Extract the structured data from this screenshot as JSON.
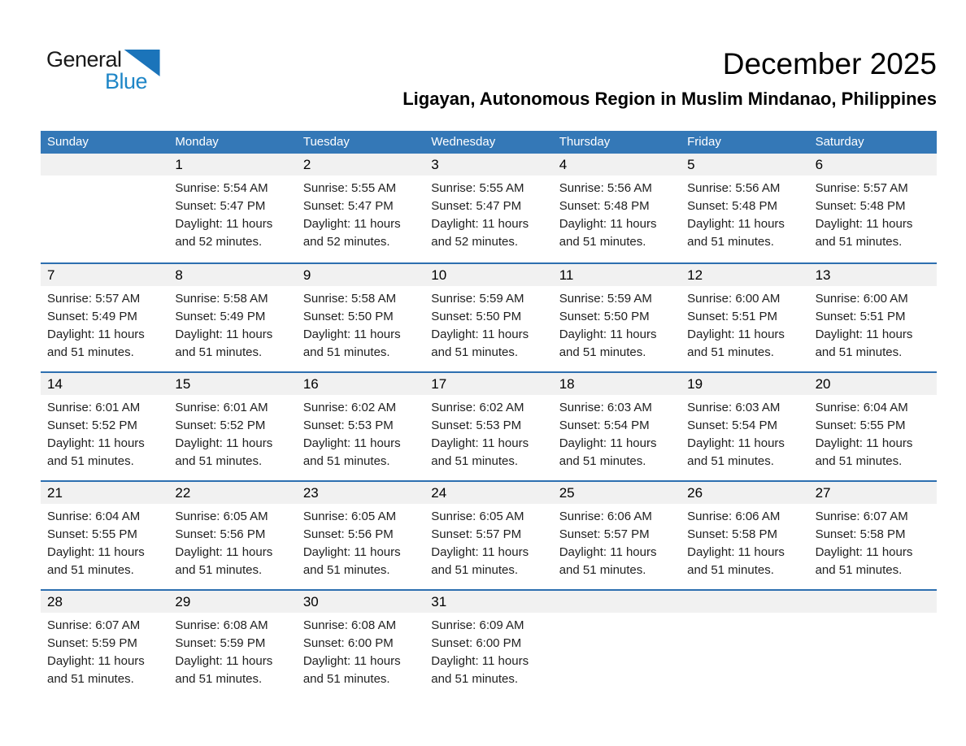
{
  "logo": {
    "word1": "General",
    "word2": "Blue",
    "triangle_icon": "logo-triangle"
  },
  "header": {
    "title": "December 2025",
    "subtitle": "Ligayan, Autonomous Region in Muslim Mindanao, Philippines"
  },
  "colors": {
    "header_bar": "#3478B7",
    "week_separator": "#2D6FB0",
    "day_number_band": "#F1F1F1",
    "logo_black": "#1A1A1A",
    "logo_blue": "#1E86C7",
    "logo_triangle_blue": "#1B74BA",
    "text": "#212121"
  },
  "calendar": {
    "day_headers": [
      "Sunday",
      "Monday",
      "Tuesday",
      "Wednesday",
      "Thursday",
      "Friday",
      "Saturday"
    ],
    "weeks": [
      [
        {
          "day": "",
          "sunrise": "",
          "sunset": "",
          "daylight1": "",
          "daylight2": ""
        },
        {
          "day": "1",
          "sunrise": "Sunrise: 5:54 AM",
          "sunset": "Sunset: 5:47 PM",
          "daylight1": "Daylight: 11 hours",
          "daylight2": "and 52 minutes."
        },
        {
          "day": "2",
          "sunrise": "Sunrise: 5:55 AM",
          "sunset": "Sunset: 5:47 PM",
          "daylight1": "Daylight: 11 hours",
          "daylight2": "and 52 minutes."
        },
        {
          "day": "3",
          "sunrise": "Sunrise: 5:55 AM",
          "sunset": "Sunset: 5:47 PM",
          "daylight1": "Daylight: 11 hours",
          "daylight2": "and 52 minutes."
        },
        {
          "day": "4",
          "sunrise": "Sunrise: 5:56 AM",
          "sunset": "Sunset: 5:48 PM",
          "daylight1": "Daylight: 11 hours",
          "daylight2": "and 51 minutes."
        },
        {
          "day": "5",
          "sunrise": "Sunrise: 5:56 AM",
          "sunset": "Sunset: 5:48 PM",
          "daylight1": "Daylight: 11 hours",
          "daylight2": "and 51 minutes."
        },
        {
          "day": "6",
          "sunrise": "Sunrise: 5:57 AM",
          "sunset": "Sunset: 5:48 PM",
          "daylight1": "Daylight: 11 hours",
          "daylight2": "and 51 minutes."
        }
      ],
      [
        {
          "day": "7",
          "sunrise": "Sunrise: 5:57 AM",
          "sunset": "Sunset: 5:49 PM",
          "daylight1": "Daylight: 11 hours",
          "daylight2": "and 51 minutes."
        },
        {
          "day": "8",
          "sunrise": "Sunrise: 5:58 AM",
          "sunset": "Sunset: 5:49 PM",
          "daylight1": "Daylight: 11 hours",
          "daylight2": "and 51 minutes."
        },
        {
          "day": "9",
          "sunrise": "Sunrise: 5:58 AM",
          "sunset": "Sunset: 5:50 PM",
          "daylight1": "Daylight: 11 hours",
          "daylight2": "and 51 minutes."
        },
        {
          "day": "10",
          "sunrise": "Sunrise: 5:59 AM",
          "sunset": "Sunset: 5:50 PM",
          "daylight1": "Daylight: 11 hours",
          "daylight2": "and 51 minutes."
        },
        {
          "day": "11",
          "sunrise": "Sunrise: 5:59 AM",
          "sunset": "Sunset: 5:50 PM",
          "daylight1": "Daylight: 11 hours",
          "daylight2": "and 51 minutes."
        },
        {
          "day": "12",
          "sunrise": "Sunrise: 6:00 AM",
          "sunset": "Sunset: 5:51 PM",
          "daylight1": "Daylight: 11 hours",
          "daylight2": "and 51 minutes."
        },
        {
          "day": "13",
          "sunrise": "Sunrise: 6:00 AM",
          "sunset": "Sunset: 5:51 PM",
          "daylight1": "Daylight: 11 hours",
          "daylight2": "and 51 minutes."
        }
      ],
      [
        {
          "day": "14",
          "sunrise": "Sunrise: 6:01 AM",
          "sunset": "Sunset: 5:52 PM",
          "daylight1": "Daylight: 11 hours",
          "daylight2": "and 51 minutes."
        },
        {
          "day": "15",
          "sunrise": "Sunrise: 6:01 AM",
          "sunset": "Sunset: 5:52 PM",
          "daylight1": "Daylight: 11 hours",
          "daylight2": "and 51 minutes."
        },
        {
          "day": "16",
          "sunrise": "Sunrise: 6:02 AM",
          "sunset": "Sunset: 5:53 PM",
          "daylight1": "Daylight: 11 hours",
          "daylight2": "and 51 minutes."
        },
        {
          "day": "17",
          "sunrise": "Sunrise: 6:02 AM",
          "sunset": "Sunset: 5:53 PM",
          "daylight1": "Daylight: 11 hours",
          "daylight2": "and 51 minutes."
        },
        {
          "day": "18",
          "sunrise": "Sunrise: 6:03 AM",
          "sunset": "Sunset: 5:54 PM",
          "daylight1": "Daylight: 11 hours",
          "daylight2": "and 51 minutes."
        },
        {
          "day": "19",
          "sunrise": "Sunrise: 6:03 AM",
          "sunset": "Sunset: 5:54 PM",
          "daylight1": "Daylight: 11 hours",
          "daylight2": "and 51 minutes."
        },
        {
          "day": "20",
          "sunrise": "Sunrise: 6:04 AM",
          "sunset": "Sunset: 5:55 PM",
          "daylight1": "Daylight: 11 hours",
          "daylight2": "and 51 minutes."
        }
      ],
      [
        {
          "day": "21",
          "sunrise": "Sunrise: 6:04 AM",
          "sunset": "Sunset: 5:55 PM",
          "daylight1": "Daylight: 11 hours",
          "daylight2": "and 51 minutes."
        },
        {
          "day": "22",
          "sunrise": "Sunrise: 6:05 AM",
          "sunset": "Sunset: 5:56 PM",
          "daylight1": "Daylight: 11 hours",
          "daylight2": "and 51 minutes."
        },
        {
          "day": "23",
          "sunrise": "Sunrise: 6:05 AM",
          "sunset": "Sunset: 5:56 PM",
          "daylight1": "Daylight: 11 hours",
          "daylight2": "and 51 minutes."
        },
        {
          "day": "24",
          "sunrise": "Sunrise: 6:05 AM",
          "sunset": "Sunset: 5:57 PM",
          "daylight1": "Daylight: 11 hours",
          "daylight2": "and 51 minutes."
        },
        {
          "day": "25",
          "sunrise": "Sunrise: 6:06 AM",
          "sunset": "Sunset: 5:57 PM",
          "daylight1": "Daylight: 11 hours",
          "daylight2": "and 51 minutes."
        },
        {
          "day": "26",
          "sunrise": "Sunrise: 6:06 AM",
          "sunset": "Sunset: 5:58 PM",
          "daylight1": "Daylight: 11 hours",
          "daylight2": "and 51 minutes."
        },
        {
          "day": "27",
          "sunrise": "Sunrise: 6:07 AM",
          "sunset": "Sunset: 5:58 PM",
          "daylight1": "Daylight: 11 hours",
          "daylight2": "and 51 minutes."
        }
      ],
      [
        {
          "day": "28",
          "sunrise": "Sunrise: 6:07 AM",
          "sunset": "Sunset: 5:59 PM",
          "daylight1": "Daylight: 11 hours",
          "daylight2": "and 51 minutes."
        },
        {
          "day": "29",
          "sunrise": "Sunrise: 6:08 AM",
          "sunset": "Sunset: 5:59 PM",
          "daylight1": "Daylight: 11 hours",
          "daylight2": "and 51 minutes."
        },
        {
          "day": "30",
          "sunrise": "Sunrise: 6:08 AM",
          "sunset": "Sunset: 6:00 PM",
          "daylight1": "Daylight: 11 hours",
          "daylight2": "and 51 minutes."
        },
        {
          "day": "31",
          "sunrise": "Sunrise: 6:09 AM",
          "sunset": "Sunset: 6:00 PM",
          "daylight1": "Daylight: 11 hours",
          "daylight2": "and 51 minutes."
        },
        {
          "day": "",
          "sunrise": "",
          "sunset": "",
          "daylight1": "",
          "daylight2": ""
        },
        {
          "day": "",
          "sunrise": "",
          "sunset": "",
          "daylight1": "",
          "daylight2": ""
        },
        {
          "day": "",
          "sunrise": "",
          "sunset": "",
          "daylight1": "",
          "daylight2": ""
        }
      ]
    ]
  }
}
